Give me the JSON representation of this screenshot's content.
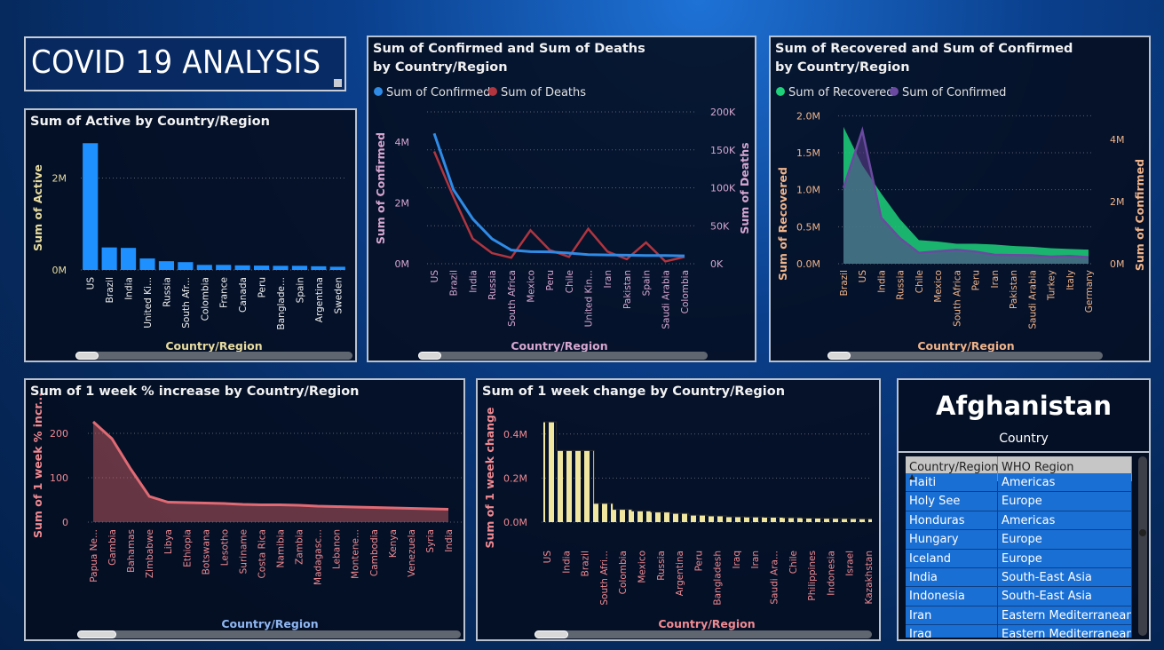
{
  "dashboard_title": "COVID 19 ANALYSIS",
  "colors": {
    "active_bar": "#1e90ff",
    "confirmed_line": "#2f8be6",
    "deaths_line": "#b0353f",
    "recovered_area": "#1fd17a",
    "confirmed_area": "#5b3d8c",
    "week_pct_area": "#c75b63",
    "week_change_fill": "#f0e6a0"
  },
  "chart_data": [
    {
      "id": "active",
      "type": "bar",
      "title": "Sum of Active by Country/Region",
      "xlabel": "Country/Region",
      "ylabel": "Sum of Active",
      "ylim": [
        0,
        2900000
      ],
      "yticks": [
        {
          "v": 0,
          "t": "0M"
        },
        {
          "v": 2000000,
          "t": "2M"
        }
      ],
      "categories": [
        "US",
        "Brazil",
        "India",
        "United Ki...",
        "Russia",
        "South Afr...",
        "Colombia",
        "France",
        "Canada",
        "Peru",
        "Banglade...",
        "Spain",
        "Argentina",
        "Sweden"
      ],
      "values": [
        2760000,
        490000,
        480000,
        250000,
        190000,
        170000,
        110000,
        110000,
        100000,
        95000,
        90000,
        90000,
        80000,
        70000
      ]
    },
    {
      "id": "confirmed_deaths",
      "type": "line",
      "title": "Sum of Confirmed and Sum of Deaths by Country/Region",
      "xlabel": "Country/Region",
      "ylabel": "Sum of Confirmed",
      "y2label": "Sum of Deaths",
      "ylim": [
        0,
        5000000
      ],
      "y2lim": [
        0,
        200000
      ],
      "yticks": [
        {
          "v": 0,
          "t": "0M"
        },
        {
          "v": 2000000,
          "t": "2M"
        },
        {
          "v": 4000000,
          "t": "4M"
        }
      ],
      "y2ticks": [
        {
          "v": 0,
          "t": "0K"
        },
        {
          "v": 50000,
          "t": "50K"
        },
        {
          "v": 100000,
          "t": "100K"
        },
        {
          "v": 150000,
          "t": "150K"
        },
        {
          "v": 200000,
          "t": "200K"
        }
      ],
      "legend": [
        "Sum of Confirmed",
        "Sum of Deaths"
      ],
      "categories": [
        "US",
        "Brazil",
        "India",
        "Russia",
        "South Africa",
        "Mexico",
        "Peru",
        "Chile",
        "United Kin...",
        "Iran",
        "Pakistan",
        "Spain",
        "Saudi Arabia",
        "Colombia"
      ],
      "series": [
        {
          "name": "Sum of Confirmed",
          "axis": "left",
          "values": [
            4290000,
            2440000,
            1480000,
            820000,
            450000,
            400000,
            390000,
            350000,
            300000,
            290000,
            280000,
            270000,
            270000,
            260000
          ]
        },
        {
          "name": "Sum of Deaths",
          "axis": "right",
          "values": [
            148000,
            88000,
            33000,
            14000,
            8000,
            44000,
            18000,
            9000,
            46000,
            16000,
            6000,
            28000,
            3000,
            9000
          ]
        }
      ]
    },
    {
      "id": "recovered_confirmed",
      "type": "area",
      "title": "Sum of Recovered and Sum of Confirmed by Country/Region",
      "xlabel": "Country/Region",
      "ylabel": "Sum of Recovered",
      "y2label": "Sum of Confirmed",
      "ylim": [
        0,
        2100000
      ],
      "y2lim": [
        0,
        5000000
      ],
      "yticks": [
        {
          "v": 0,
          "t": "0.0M"
        },
        {
          "v": 500000,
          "t": "0.5M"
        },
        {
          "v": 1000000,
          "t": "1.0M"
        },
        {
          "v": 1500000,
          "t": "1.5M"
        },
        {
          "v": 2000000,
          "t": "2.0M"
        }
      ],
      "y2ticks": [
        {
          "v": 0,
          "t": "0M"
        },
        {
          "v": 2000000,
          "t": "2M"
        },
        {
          "v": 4000000,
          "t": "4M"
        }
      ],
      "legend": [
        "Sum of Recovered",
        "Sum of Confirmed"
      ],
      "categories": [
        "Brazil",
        "US",
        "India",
        "Russia",
        "Chile",
        "Mexico",
        "South Africa",
        "Peru",
        "Iran",
        "Pakistan",
        "Saudi Arabia",
        "Turkey",
        "Italy",
        "Germany"
      ],
      "series": [
        {
          "name": "Sum of Recovered",
          "axis": "left",
          "values": [
            1850000,
            1330000,
            950000,
            600000,
            320000,
            300000,
            270000,
            270000,
            260000,
            240000,
            230000,
            210000,
            200000,
            190000
          ]
        },
        {
          "name": "Sum of Confirmed",
          "axis": "right",
          "values": [
            2440000,
            4290000,
            1480000,
            820000,
            350000,
            400000,
            450000,
            390000,
            290000,
            280000,
            270000,
            230000,
            250000,
            210000
          ]
        }
      ]
    },
    {
      "id": "week_pct",
      "type": "area",
      "title": "Sum of 1 week % increase by Country/Region",
      "xlabel": "Country/Region",
      "ylabel": "Sum of 1 week % incr...",
      "ylim": [
        0,
        240
      ],
      "yticks": [
        {
          "v": 0,
          "t": "0"
        },
        {
          "v": 100,
          "t": "100"
        },
        {
          "v": 200,
          "t": "200"
        }
      ],
      "categories": [
        "Papua Ne...",
        "Gambia",
        "Bahamas",
        "Zimbabwe",
        "Libya",
        "Ethiopia",
        "Botswana",
        "Lesotho",
        "Suriname",
        "Costa Rica",
        "Namibia",
        "Zambia",
        "Madagasc...",
        "Lebanon",
        "Montene...",
        "Cambodia",
        "Kenya",
        "Venezuela",
        "Syria",
        "India"
      ],
      "values": [
        226,
        188,
        120,
        58,
        45,
        44,
        43,
        42,
        40,
        39,
        39,
        38,
        36,
        35,
        34,
        33,
        32,
        31,
        30,
        29
      ]
    },
    {
      "id": "week_change",
      "type": "area",
      "title": "Sum of 1 week change by Country/Region",
      "xlabel": "Country/Region",
      "ylabel": "Sum of 1 week change",
      "ylim": [
        0,
        0.5
      ],
      "yticks": [
        {
          "v": 0,
          "t": "0.0M"
        },
        {
          "v": 0.2,
          "t": "0.2M"
        },
        {
          "v": 0.4,
          "t": "0.4M"
        }
      ],
      "categories": [
        "US",
        "India",
        "Brazil",
        "South Afri...",
        "Colombia",
        "Mexico",
        "Russia",
        "Argentina",
        "Peru",
        "Bangladesh",
        "Iraq",
        "Iran",
        "Saudi Ara...",
        "Chile",
        "Philippines",
        "Indonesia",
        "Israel",
        "Kazakhstan"
      ],
      "values": [
        0.455,
        0.325,
        0.325,
        0.085,
        0.058,
        0.051,
        0.046,
        0.04,
        0.032,
        0.028,
        0.024,
        0.023,
        0.022,
        0.02,
        0.018,
        0.017,
        0.016,
        0.015
      ]
    }
  ],
  "card": {
    "value": "Afghanistan",
    "label": "Country"
  },
  "table": {
    "headers": [
      "Country/Region",
      "WHO Region"
    ],
    "rows": [
      [
        "Haiti",
        "Americas"
      ],
      [
        "Holy See",
        "Europe"
      ],
      [
        "Honduras",
        "Americas"
      ],
      [
        "Hungary",
        "Europe"
      ],
      [
        "Iceland",
        "Europe"
      ],
      [
        "India",
        "South-East Asia"
      ],
      [
        "Indonesia",
        "South-East Asia"
      ],
      [
        "Iran",
        "Eastern Mediterranean"
      ],
      [
        "Iraq",
        "Eastern Mediterranean"
      ]
    ]
  }
}
